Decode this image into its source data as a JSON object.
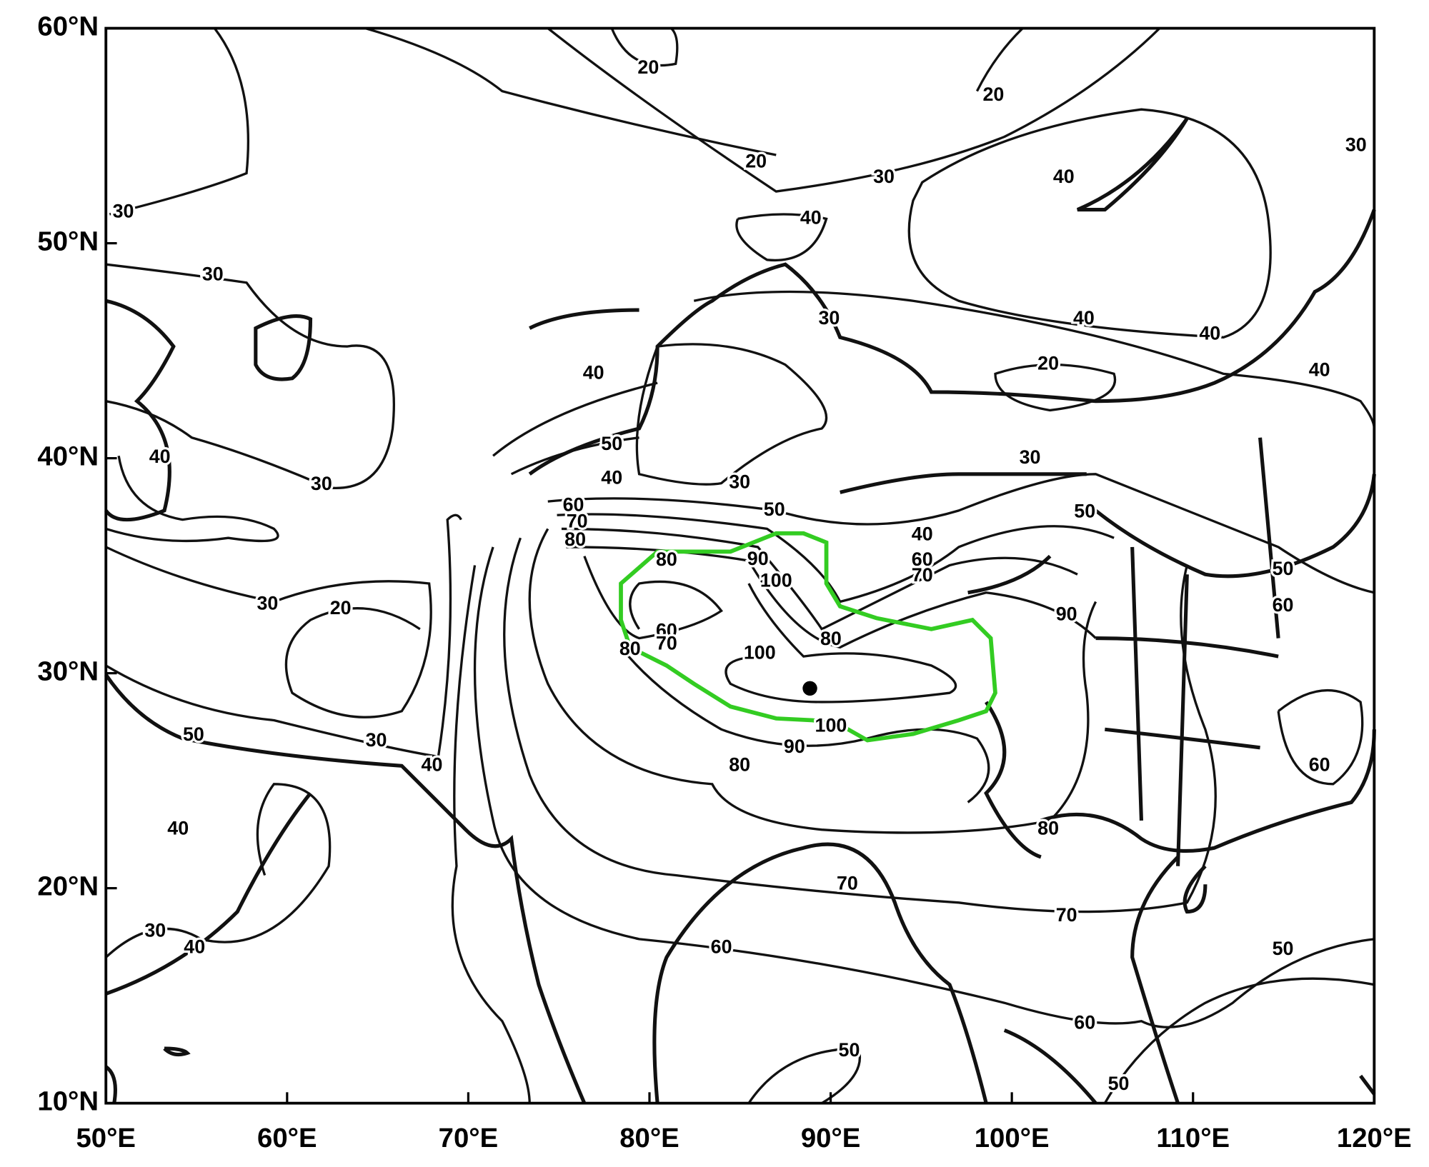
{
  "map": {
    "xticks": [
      {
        "value": 50,
        "label": "50°E"
      },
      {
        "value": 60,
        "label": "60°E"
      },
      {
        "value": 70,
        "label": "70°E"
      },
      {
        "value": 80,
        "label": "80°E"
      },
      {
        "value": 90,
        "label": "90°E"
      },
      {
        "value": 100,
        "label": "100°E"
      },
      {
        "value": 110,
        "label": "110°E"
      },
      {
        "value": 120,
        "label": "120°E"
      }
    ],
    "yticks": [
      {
        "value": 10,
        "label": "10°N"
      },
      {
        "value": 20,
        "label": "20°N"
      },
      {
        "value": 30,
        "label": "30°N"
      },
      {
        "value": 40,
        "label": "40°N"
      },
      {
        "value": 50,
        "label": "50°N"
      },
      {
        "value": 60,
        "label": "60°N"
      }
    ],
    "xlim": [
      50,
      120
    ],
    "ylim": [
      10,
      60
    ],
    "contour_labels": [
      "20",
      "20",
      "20",
      "30",
      "40",
      "30",
      "30",
      "40",
      "30",
      "30",
      "40",
      "40",
      "20",
      "40",
      "40",
      "40",
      "50",
      "30",
      "30",
      "40",
      "30",
      "50",
      "40",
      "50",
      "60",
      "70",
      "80",
      "80",
      "60",
      "70",
      "90",
      "100",
      "50",
      "30",
      "20",
      "60",
      "90",
      "60",
      "70",
      "80",
      "80",
      "100",
      "50",
      "30",
      "100",
      "40",
      "90",
      "80",
      "60",
      "40",
      "80",
      "70",
      "70",
      "30",
      "40",
      "60",
      "50",
      "60",
      "50",
      "50"
    ]
  }
}
